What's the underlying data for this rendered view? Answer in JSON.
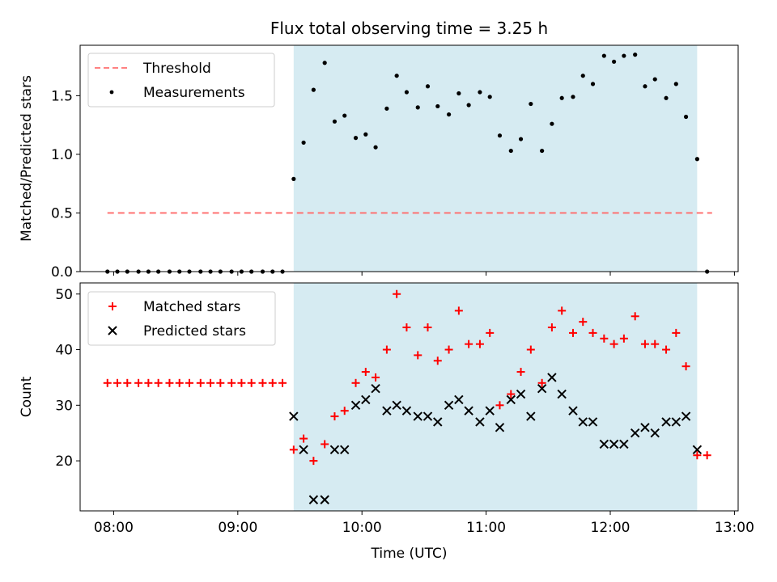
{
  "chart_data": [
    {
      "type": "scatter",
      "title": "Flux total observing time = 3.25 h",
      "ylabel": "Matched/Predicted stars",
      "xlabel": "",
      "xlim": [
        7.73,
        13.03
      ],
      "ylim": [
        0.0,
        1.93
      ],
      "yticks": [
        0.0,
        0.5,
        1.0,
        1.5
      ],
      "ytick_labels": [
        "0.0",
        "0.5",
        "1.0",
        "1.5"
      ],
      "xticks": [
        8,
        9,
        10,
        11,
        12,
        13
      ],
      "shaded_span": [
        9.45,
        12.7
      ],
      "shaded_color": "#add8e6",
      "threshold": {
        "name": "Threshold",
        "value": 0.5,
        "x": [
          7.95,
          12.82
        ],
        "color": "#ff6b6b"
      },
      "legend": {
        "location": "top-left",
        "entries": [
          "Threshold",
          "Measurements"
        ]
      },
      "series": [
        {
          "name": "Measurements",
          "color": "#000000",
          "x": [
            7.95,
            8.03,
            8.11,
            8.2,
            8.28,
            8.36,
            8.45,
            8.53,
            8.61,
            8.7,
            8.78,
            8.86,
            8.95,
            9.03,
            9.11,
            9.2,
            9.28,
            9.36,
            9.45,
            9.53,
            9.61,
            9.7,
            9.78,
            9.86,
            9.95,
            10.03,
            10.11,
            10.2,
            10.28,
            10.36,
            10.45,
            10.53,
            10.61,
            10.7,
            10.78,
            10.86,
            10.95,
            11.03,
            11.11,
            11.2,
            11.28,
            11.36,
            11.45,
            11.53,
            11.61,
            11.7,
            11.78,
            11.86,
            11.95,
            12.03,
            12.11,
            12.2,
            12.28,
            12.36,
            12.45,
            12.53,
            12.61,
            12.7,
            12.78
          ],
          "y": [
            0,
            0,
            0,
            0,
            0,
            0,
            0,
            0,
            0,
            0,
            0,
            0,
            0,
            0,
            0,
            0,
            0,
            0,
            0.79,
            1.1,
            1.55,
            1.78,
            1.28,
            1.33,
            1.14,
            1.17,
            1.06,
            1.39,
            1.67,
            1.53,
            1.4,
            1.58,
            1.41,
            1.34,
            1.52,
            1.42,
            1.53,
            1.49,
            1.16,
            1.03,
            1.13,
            1.43,
            1.03,
            1.26,
            1.48,
            1.49,
            1.67,
            1.6,
            1.84,
            1.79,
            1.84,
            1.85,
            1.58,
            1.64,
            1.48,
            1.6,
            1.32,
            0.96,
            0
          ]
        }
      ]
    },
    {
      "type": "scatter",
      "title": "",
      "ylabel": "Count",
      "xlabel": "Time (UTC)",
      "xlim": [
        7.73,
        13.03
      ],
      "ylim": [
        11,
        52
      ],
      "yticks": [
        20,
        30,
        40,
        50
      ],
      "ytick_labels": [
        "20",
        "30",
        "40",
        "50"
      ],
      "xticks": [
        8,
        9,
        10,
        11,
        12,
        13
      ],
      "xtick_labels": [
        "08:00",
        "09:00",
        "10:00",
        "11:00",
        "12:00",
        "13:00"
      ],
      "shaded_span": [
        9.45,
        12.7
      ],
      "legend": {
        "location": "top-left",
        "entries": [
          "Matched stars",
          "Predicted stars"
        ]
      },
      "series": [
        {
          "name": "Matched stars",
          "marker": "+",
          "color": "#ff0000",
          "x": [
            7.95,
            8.03,
            8.11,
            8.2,
            8.28,
            8.36,
            8.45,
            8.53,
            8.61,
            8.7,
            8.78,
            8.86,
            8.95,
            9.03,
            9.11,
            9.2,
            9.28,
            9.36,
            9.45,
            9.53,
            9.61,
            9.7,
            9.78,
            9.86,
            9.95,
            10.03,
            10.11,
            10.2,
            10.28,
            10.36,
            10.45,
            10.53,
            10.61,
            10.7,
            10.78,
            10.86,
            10.95,
            11.03,
            11.11,
            11.2,
            11.28,
            11.36,
            11.45,
            11.53,
            11.61,
            11.7,
            11.78,
            11.86,
            11.95,
            12.03,
            12.11,
            12.2,
            12.28,
            12.36,
            12.45,
            12.53,
            12.61,
            12.7,
            12.78
          ],
          "y": [
            34,
            34,
            34,
            34,
            34,
            34,
            34,
            34,
            34,
            34,
            34,
            34,
            34,
            34,
            34,
            34,
            34,
            34,
            22,
            24,
            20,
            23,
            28,
            29,
            34,
            36,
            35,
            40,
            50,
            44,
            39,
            44,
            38,
            40,
            47,
            41,
            41,
            43,
            30,
            32,
            36,
            40,
            34,
            44,
            47,
            43,
            45,
            43,
            42,
            41,
            42,
            46,
            41,
            41,
            40,
            43,
            37,
            21,
            21
          ]
        },
        {
          "name": "Predicted stars",
          "marker": "x",
          "color": "#000000",
          "x": [
            9.45,
            9.53,
            9.61,
            9.7,
            9.78,
            9.86,
            9.95,
            10.03,
            10.11,
            10.2,
            10.28,
            10.36,
            10.45,
            10.53,
            10.61,
            10.7,
            10.78,
            10.86,
            10.95,
            11.03,
            11.11,
            11.2,
            11.28,
            11.36,
            11.45,
            11.53,
            11.61,
            11.7,
            11.78,
            11.86,
            11.95,
            12.03,
            12.11,
            12.2,
            12.28,
            12.36,
            12.45,
            12.53,
            12.61,
            12.7
          ],
          "y": [
            28,
            22,
            13,
            13,
            22,
            22,
            30,
            31,
            33,
            29,
            30,
            29,
            28,
            28,
            27,
            30,
            31,
            29,
            27,
            29,
            26,
            31,
            32,
            28,
            33,
            35,
            32,
            29,
            27,
            27,
            23,
            23,
            23,
            25,
            26,
            25,
            27,
            27,
            28,
            22
          ]
        }
      ]
    }
  ]
}
